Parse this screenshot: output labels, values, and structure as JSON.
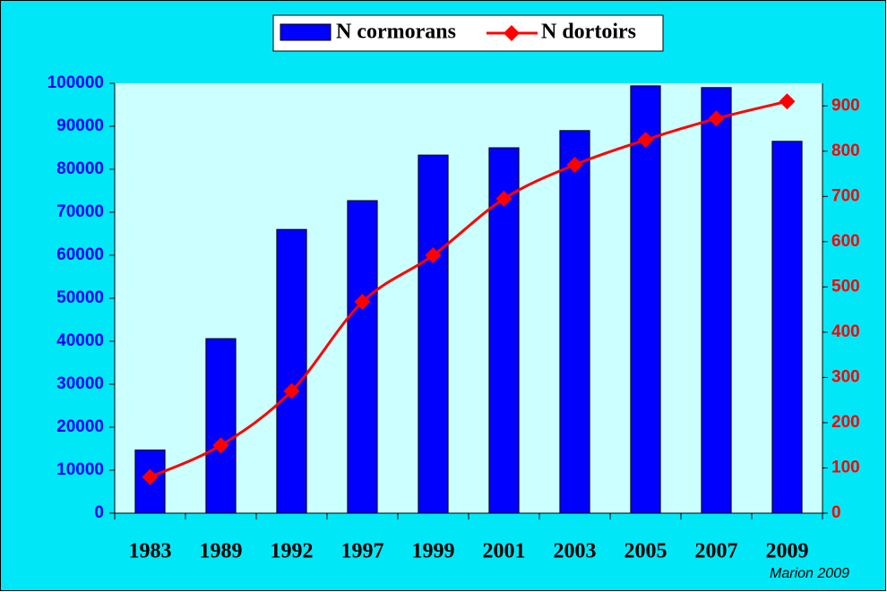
{
  "chart_data": {
    "type": "bar",
    "categories": [
      "1983",
      "1989",
      "1992",
      "1997",
      "1999",
      "2001",
      "2003",
      "2005",
      "2007",
      "2009"
    ],
    "series": [
      {
        "name": "N cormorans",
        "type": "bar",
        "color": "#0000ff",
        "values": [
          14700,
          40600,
          66000,
          72700,
          83300,
          85000,
          89000,
          99400,
          99000,
          86500
        ]
      },
      {
        "name": "N dortoirs",
        "type": "line",
        "axis": "y2",
        "color": "#ff0000",
        "values": [
          80,
          150,
          270,
          467,
          570,
          695,
          770,
          825,
          872,
          910
        ]
      }
    ],
    "ylim": [
      0,
      100000
    ],
    "yticks": [
      0,
      10000,
      20000,
      30000,
      40000,
      50000,
      60000,
      70000,
      80000,
      90000,
      100000
    ],
    "y2lim": [
      0,
      950
    ],
    "y2ticks": [
      0,
      100,
      200,
      300,
      400,
      500,
      600,
      700,
      800,
      900
    ],
    "annotation": "Marion 2009",
    "legend": "top"
  }
}
